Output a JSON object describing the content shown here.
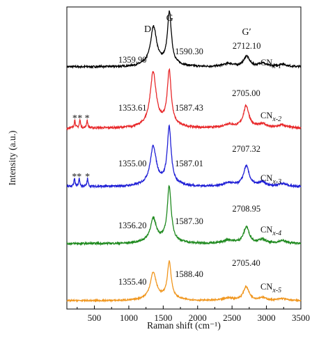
{
  "chart_data": {
    "type": "line",
    "xlabel": "Raman shift (cm⁻¹)",
    "ylabel": "Intensity (a.u.)",
    "xlim": [
      100,
      3500
    ],
    "x_ticks": [
      "500",
      "1000",
      "1500",
      "2000",
      "2500",
      "3000",
      "3500"
    ],
    "y_ticks_shown": false,
    "grid": false,
    "band_labels": [
      "D",
      "G",
      "G′"
    ],
    "series": [
      {
        "name": "CNx-1",
        "label_base": "CN",
        "label_sub": "x-1",
        "color": "#000000",
        "D_peak": "1359.90",
        "G_peak": "1590.30",
        "G2_peak": "2712.10",
        "D_pos": 1359.9,
        "G_pos": 1590.3,
        "G2_pos": 2712.1,
        "D_rel": 0.72,
        "G_rel": 1.0,
        "G2_rel": 0.2,
        "stars": []
      },
      {
        "name": "CNx-2",
        "label_base": "CN",
        "label_sub": "x-2",
        "color": "#e8292b",
        "D_peak": "1353.61",
        "G_peak": "1587.43",
        "G2_peak": "2705.00",
        "D_pos": 1353.61,
        "G_pos": 1587.43,
        "G2_pos": 2705.0,
        "D_rel": 0.92,
        "G_rel": 0.94,
        "G2_rel": 0.38,
        "stars": [
          215,
          290,
          395
        ]
      },
      {
        "name": "CNx-3",
        "label_base": "CN",
        "label_sub": "x-3",
        "color": "#1f1fd6",
        "D_peak": "1355.00",
        "G_peak": "1587.01",
        "G2_peak": "2707.32",
        "D_rel": 0.66,
        "G_rel": 1.0,
        "G2_rel": 0.36,
        "D_pos": 1355.0,
        "G_pos": 1587.01,
        "G2_pos": 2707.32,
        "stars": [
          210,
          280,
          400
        ]
      },
      {
        "name": "CNx-4",
        "label_base": "CN",
        "label_sub": "x-4",
        "color": "#1f8a1f",
        "D_peak": "1356.20",
        "G_peak": "1587.30",
        "G2_peak": "2708.95",
        "D_pos": 1356.2,
        "G_pos": 1587.3,
        "G2_pos": 2708.95,
        "D_rel": 0.4,
        "G_rel": 1.0,
        "G2_rel": 0.3,
        "stars": []
      },
      {
        "name": "CNx-5",
        "label_base": "CN",
        "label_sub": "x-5",
        "color": "#f0961e",
        "D_peak": "1355.40",
        "G_peak": "1588.40",
        "G2_peak": "2705.40",
        "D_pos": 1355.4,
        "G_pos": 1588.4,
        "G2_pos": 2705.4,
        "D_rel": 0.64,
        "G_rel": 0.9,
        "G2_rel": 0.34,
        "stars": []
      }
    ]
  }
}
